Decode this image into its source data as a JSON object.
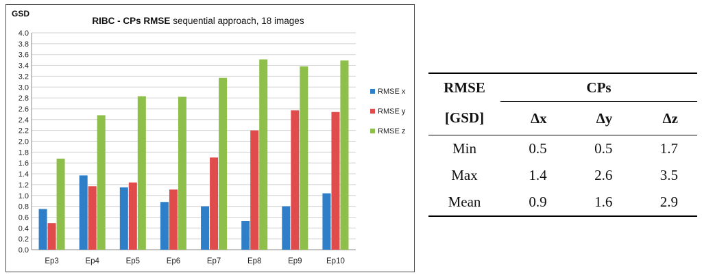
{
  "chart_data": {
    "type": "bar",
    "title_bold": "RIBC - CPs RMSE",
    "title_rest": " sequential approach, 18 images",
    "ylabel": "GSD",
    "xlabel": "",
    "ylim": [
      0,
      4.0
    ],
    "ytick_step": 0.2,
    "yticks": [
      "0.0",
      "0.2",
      "0.4",
      "0.6",
      "0.8",
      "1.0",
      "1.2",
      "1.4",
      "1.6",
      "1.8",
      "2.0",
      "2.2",
      "2.4",
      "2.6",
      "2.8",
      "3.0",
      "3.2",
      "3.4",
      "3.6",
      "3.8",
      "4.0"
    ],
    "grid": true,
    "legend_position": "right",
    "categories": [
      "Ep3",
      "Ep4",
      "Ep5",
      "Ep6",
      "Ep7",
      "Ep8",
      "Ep9",
      "Ep10"
    ],
    "series": [
      {
        "name": "RMSE x",
        "color": "#2e7ec8",
        "values": [
          0.75,
          1.37,
          1.15,
          0.88,
          0.8,
          0.53,
          0.8,
          1.04
        ]
      },
      {
        "name": "RMSE y",
        "color": "#e04b4b",
        "values": [
          0.49,
          1.17,
          1.24,
          1.11,
          1.7,
          2.2,
          2.57,
          2.54
        ]
      },
      {
        "name": "RMSE z",
        "color": "#8ebf4a",
        "values": [
          1.68,
          2.48,
          2.83,
          2.82,
          3.17,
          3.51,
          3.38,
          3.49
        ]
      }
    ]
  },
  "table": {
    "header_col1_line1": "RMSE",
    "header_col1_line2": "[GSD]",
    "group_header": "CPs",
    "sub_headers": [
      "Δx",
      "Δy",
      "Δz"
    ],
    "rows": [
      {
        "label": "Min",
        "values": [
          "0.5",
          "0.5",
          "1.7"
        ]
      },
      {
        "label": "Max",
        "values": [
          "1.4",
          "2.6",
          "3.5"
        ]
      },
      {
        "label": "Mean",
        "values": [
          "0.9",
          "1.6",
          "2.9"
        ]
      }
    ]
  }
}
